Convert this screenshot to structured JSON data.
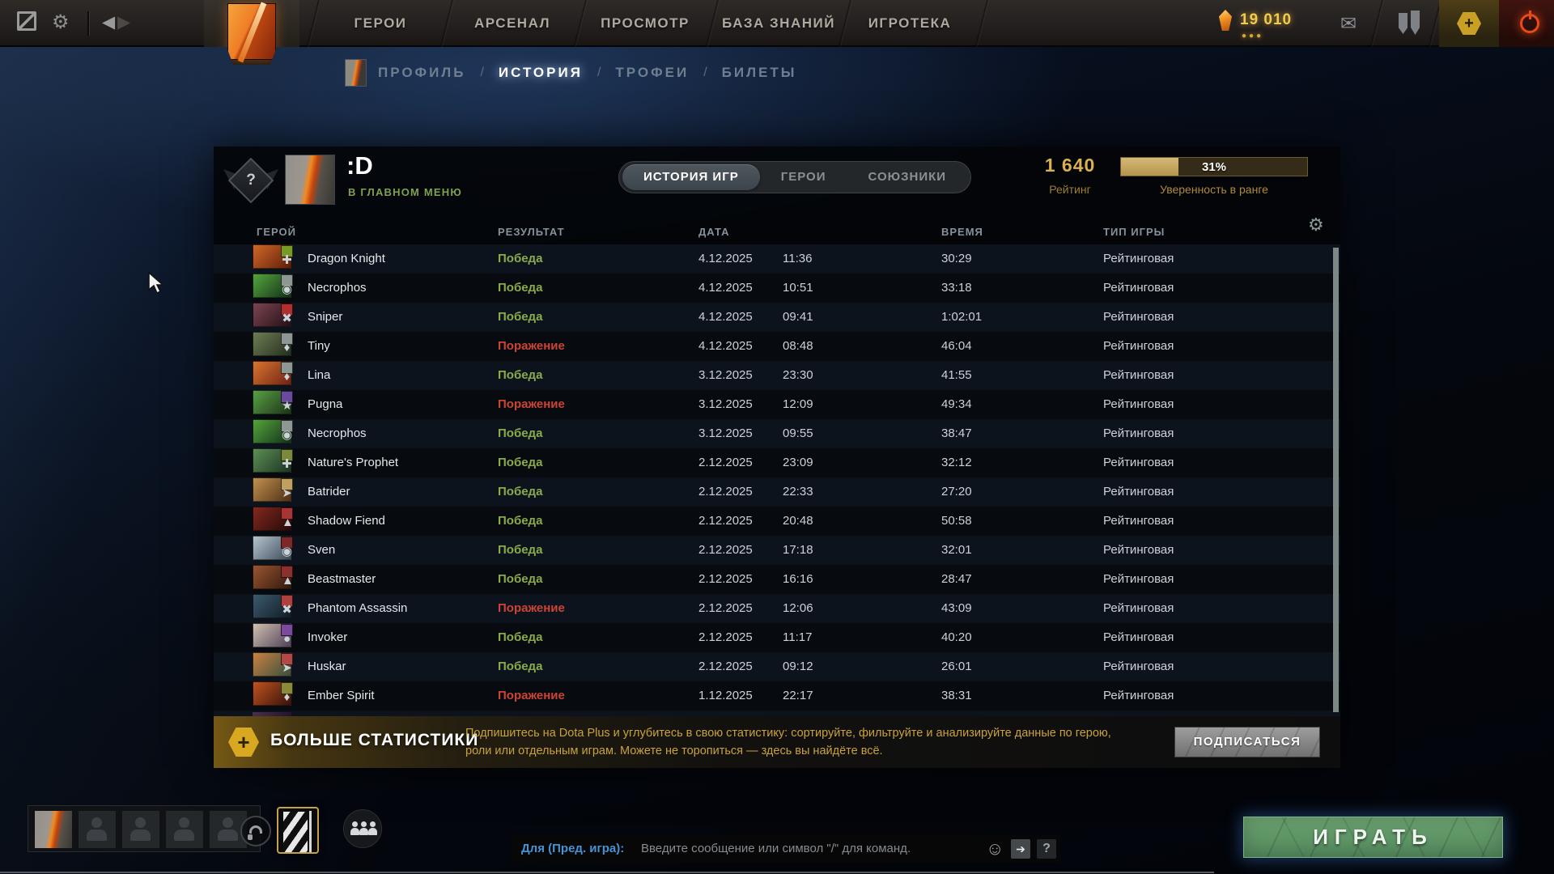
{
  "topbar": {
    "nav": [
      {
        "label": "ГЕРОИ"
      },
      {
        "label": "АРСЕНАЛ"
      },
      {
        "label": "ПРОСМОТР"
      },
      {
        "label": "БАЗА ЗНАНИЙ"
      },
      {
        "label": "ИГРОТЕКА"
      }
    ],
    "currency": {
      "value": "19 010",
      "dots": "●●●"
    },
    "icons": {
      "gear": "⚙",
      "back": "◀",
      "forward": "▶",
      "mail": "✉",
      "plus": "+",
      "smiley": "☺",
      "import": "➔",
      "help": "?",
      "table_gear": "⚙",
      "banner_plus": "+"
    }
  },
  "breadcrumb": {
    "separator": "/",
    "items": [
      {
        "label": "ПРОФИЛЬ",
        "active": false
      },
      {
        "label": "ИСТОРИЯ",
        "active": true
      },
      {
        "label": "ТРОФЕИ",
        "active": false
      },
      {
        "label": "БИЛЕТЫ",
        "active": false
      }
    ]
  },
  "profile": {
    "name": ":D",
    "status": "В ГЛАВНОМ МЕНЮ",
    "rank_badge": "?",
    "tabs": [
      {
        "label": "ИСТОРИЯ ИГР",
        "active": true
      },
      {
        "label": "ГЕРОИ",
        "active": false
      },
      {
        "label": "СОЮЗНИКИ",
        "active": false
      }
    ],
    "rating": {
      "value": "1 640",
      "label": "Рейтинг"
    },
    "confidence": {
      "percent": 31,
      "percent_label": "31%",
      "label": "Уверенность в ранге"
    }
  },
  "table": {
    "columns": {
      "hero": "ГЕРОЙ",
      "result": "РЕЗУЛЬТАТ",
      "date": "ДАТА",
      "duration": "ВРЕМЯ",
      "type": "ТИП ИГРЫ"
    },
    "rows": [
      {
        "hero": "Dragon Knight",
        "result": "Победа",
        "win": true,
        "date": "4.12.2025",
        "time": "11:36",
        "duration": "30:29",
        "type": "Рейтинговая",
        "portrait": [
          "#d06828",
          "#5f1e08"
        ],
        "badge": "#7a9a28",
        "badge_glyph": "✚"
      },
      {
        "hero": "Necrophos",
        "result": "Победа",
        "win": true,
        "date": "4.12.2025",
        "time": "10:51",
        "duration": "33:18",
        "type": "Рейтинговая",
        "portrait": [
          "#55a43c",
          "#123018"
        ],
        "badge": "#8e9794",
        "badge_glyph": "◉"
      },
      {
        "hero": "Sniper",
        "result": "Победа",
        "win": true,
        "date": "4.12.2025",
        "time": "09:41",
        "duration": "1:02:01",
        "type": "Рейтинговая",
        "portrait": [
          "#7c4450",
          "#241018"
        ],
        "badge": "#b03030",
        "badge_glyph": "✖"
      },
      {
        "hero": "Tiny",
        "result": "Поражение",
        "win": false,
        "date": "4.12.2025",
        "time": "08:48",
        "duration": "46:04",
        "type": "Рейтинговая",
        "portrait": [
          "#6d7c55",
          "#24301e"
        ],
        "badge": "#8e9794",
        "badge_glyph": "♦"
      },
      {
        "hero": "Lina",
        "result": "Победа",
        "win": true,
        "date": "3.12.2025",
        "time": "23:30",
        "duration": "41:55",
        "type": "Рейтинговая",
        "portrait": [
          "#d9762e",
          "#6e2214"
        ],
        "badge": "#8e9794",
        "badge_glyph": "♦"
      },
      {
        "hero": "Pugna",
        "result": "Поражение",
        "win": false,
        "date": "3.12.2025",
        "time": "12:09",
        "duration": "49:34",
        "type": "Рейтинговая",
        "portrait": [
          "#58a044",
          "#1d3318"
        ],
        "badge": "#6a4a9c",
        "badge_glyph": "★"
      },
      {
        "hero": "Necrophos",
        "result": "Победа",
        "win": true,
        "date": "3.12.2025",
        "time": "09:55",
        "duration": "38:47",
        "type": "Рейтинговая",
        "portrait": [
          "#55a43c",
          "#123018"
        ],
        "badge": "#8e9794",
        "badge_glyph": "◉"
      },
      {
        "hero": "Nature's Prophet",
        "result": "Победа",
        "win": true,
        "date": "2.12.2025",
        "time": "23:09",
        "duration": "32:12",
        "type": "Рейтинговая",
        "portrait": [
          "#5d8f56",
          "#1c3322"
        ],
        "badge": "#7a8a3a",
        "badge_glyph": "✚"
      },
      {
        "hero": "Batrider",
        "result": "Победа",
        "win": true,
        "date": "2.12.2025",
        "time": "22:33",
        "duration": "27:20",
        "type": "Рейтинговая",
        "portrait": [
          "#c09050",
          "#4f3014"
        ],
        "badge": "#c0a060",
        "badge_glyph": "➤"
      },
      {
        "hero": "Shadow Fiend",
        "result": "Победа",
        "win": true,
        "date": "2.12.2025",
        "time": "20:48",
        "duration": "50:58",
        "type": "Рейтинговая",
        "portrait": [
          "#842820",
          "#250a08"
        ],
        "badge": "#a83434",
        "badge_glyph": "▲"
      },
      {
        "hero": "Sven",
        "result": "Победа",
        "win": true,
        "date": "2.12.2025",
        "time": "17:18",
        "duration": "32:01",
        "type": "Рейтинговая",
        "portrait": [
          "#b6c4ce",
          "#3a4a58"
        ],
        "badge": "#7c2828",
        "badge_glyph": "◉"
      },
      {
        "hero": "Beastmaster",
        "result": "Победа",
        "win": true,
        "date": "2.12.2025",
        "time": "16:16",
        "duration": "28:47",
        "type": "Рейтинговая",
        "portrait": [
          "#9a5630",
          "#32180e"
        ],
        "badge": "#8c2f2f",
        "badge_glyph": "▲"
      },
      {
        "hero": "Phantom Assassin",
        "result": "Поражение",
        "win": false,
        "date": "2.12.2025",
        "time": "12:06",
        "duration": "43:09",
        "type": "Рейтинговая",
        "portrait": [
          "#3c5a6e",
          "#101c26"
        ],
        "badge": "#b04040",
        "badge_glyph": "✖"
      },
      {
        "hero": "Invoker",
        "result": "Победа",
        "win": true,
        "date": "2.12.2025",
        "time": "11:17",
        "duration": "40:20",
        "type": "Рейтинговая",
        "portrait": [
          "#cfc0ae",
          "#50405a"
        ],
        "badge": "#7a4a9c",
        "badge_glyph": "●"
      },
      {
        "hero": "Huskar",
        "result": "Победа",
        "win": true,
        "date": "2.12.2025",
        "time": "09:12",
        "duration": "26:01",
        "type": "Рейтинговая",
        "portrait": [
          "#cd8040",
          "#35503f"
        ],
        "badge": "#b24848",
        "badge_glyph": "➤"
      },
      {
        "hero": "Ember Spirit",
        "result": "Поражение",
        "win": false,
        "date": "1.12.2025",
        "time": "22:17",
        "duration": "38:31",
        "type": "Рейтинговая",
        "portrait": [
          "#bf531f",
          "#38120a"
        ],
        "badge": "#8a8a3a",
        "badge_glyph": "♦"
      }
    ]
  },
  "plus_banner": {
    "title": "БОЛЬШЕ СТАТИСТИКИ",
    "description": "Подпишитесь на Dota Plus и углубитесь в свою статистику: сортируйте, фильтруйте и анализируйте данные по герою, роли или отдельным играм. Можете не торопиться — здесь вы найдёте всё.",
    "button_label": "ПОДПИСАТЬСЯ"
  },
  "bottom": {
    "chat": {
      "prefix": "Для (Пред. игра):",
      "placeholder": "Введите сообщение или символ \"/\" для команд."
    },
    "play_label": "ИГРАТЬ"
  },
  "colors": {
    "win": "#8aab4a",
    "loss": "#cc4433",
    "gold": "#dab150",
    "gold_dim": "#9c7f35",
    "status_green": "#7fa24e"
  }
}
